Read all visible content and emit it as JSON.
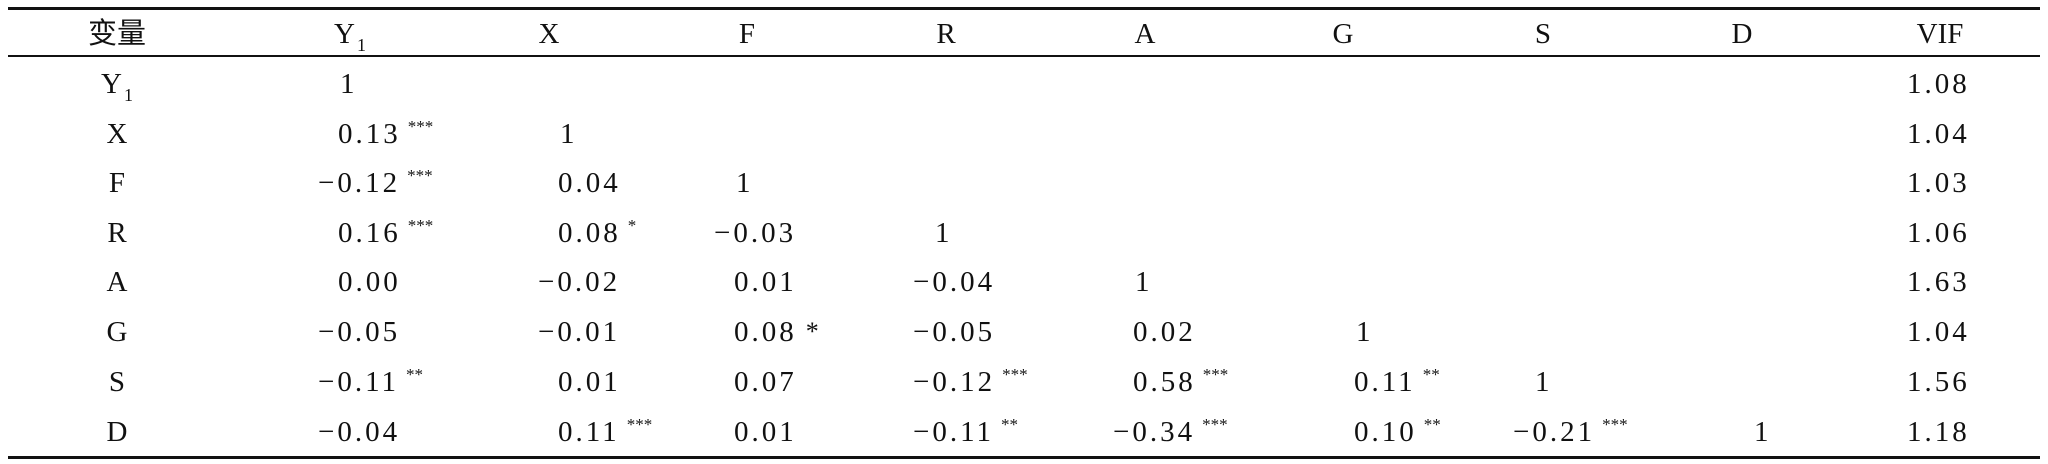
{
  "table": {
    "headers": [
      "变量",
      "Y",
      "X",
      "F",
      "R",
      "A",
      "G",
      "S",
      "D",
      "VIF"
    ],
    "y_subscript": "1",
    "rows": [
      {
        "label": "Y",
        "cells": [
          {
            "v": "1",
            "s": ""
          }
        ],
        "vif": "1.08"
      },
      {
        "label": "X",
        "cells": [
          {
            "v": "0.13",
            "s": "***"
          },
          {
            "v": "1",
            "s": ""
          }
        ],
        "vif": "1.04"
      },
      {
        "label": "F",
        "cells": [
          {
            "v": "−0.12",
            "s": "***"
          },
          {
            "v": "0.04",
            "s": ""
          },
          {
            "v": "1",
            "s": ""
          }
        ],
        "vif": "1.03"
      },
      {
        "label": "R",
        "cells": [
          {
            "v": "0.16",
            "s": "***"
          },
          {
            "v": "0.08",
            "s": "*"
          },
          {
            "v": "−0.03",
            "s": ""
          },
          {
            "v": "1",
            "s": ""
          }
        ],
        "vif": "1.06"
      },
      {
        "label": "A",
        "cells": [
          {
            "v": "0.00",
            "s": ""
          },
          {
            "v": "−0.02",
            "s": ""
          },
          {
            "v": "0.01",
            "s": ""
          },
          {
            "v": "−0.04",
            "s": ""
          },
          {
            "v": "1",
            "s": ""
          }
        ],
        "vif": "1.63"
      },
      {
        "label": "G",
        "cells": [
          {
            "v": "−0.05",
            "s": ""
          },
          {
            "v": "−0.01",
            "s": ""
          },
          {
            "v": "0.08",
            "s": "*"
          },
          {
            "v": "−0.05",
            "s": ""
          },
          {
            "v": "0.02",
            "s": ""
          },
          {
            "v": "1",
            "s": ""
          }
        ],
        "vif": "1.04"
      },
      {
        "label": "S",
        "cells": [
          {
            "v": "−0.11",
            "s": "**"
          },
          {
            "v": "0.01",
            "s": ""
          },
          {
            "v": "0.07",
            "s": ""
          },
          {
            "v": "−0.12",
            "s": "***"
          },
          {
            "v": "0.58",
            "s": "***"
          },
          {
            "v": "0.11",
            "s": "**"
          },
          {
            "v": "1",
            "s": ""
          }
        ],
        "vif": "1.56"
      },
      {
        "label": "D",
        "cells": [
          {
            "v": "−0.04",
            "s": ""
          },
          {
            "v": "0.11",
            "s": "***"
          },
          {
            "v": "0.01",
            "s": ""
          },
          {
            "v": "−0.11",
            "s": "**"
          },
          {
            "v": "−0.34",
            "s": "***"
          },
          {
            "v": "0.10",
            "s": "**"
          },
          {
            "v": "−0.21",
            "s": "***"
          },
          {
            "v": "1",
            "s": ""
          }
        ],
        "vif": "1.18"
      }
    ]
  }
}
